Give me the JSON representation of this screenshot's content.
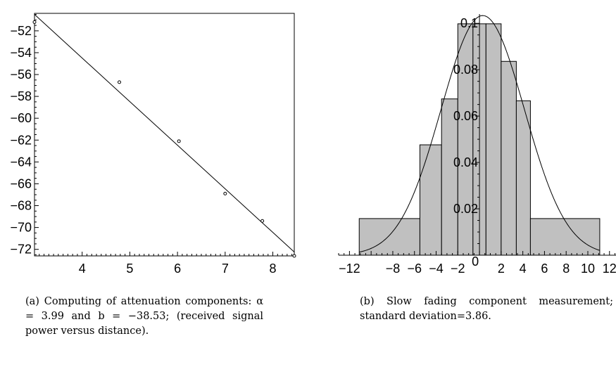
{
  "chart_data": [
    {
      "type": "scatter",
      "title": "",
      "xlabel": "",
      "ylabel": "",
      "xlim": [
        3.0,
        8.45
      ],
      "ylim": [
        -72.6,
        -50.4
      ],
      "x_ticks": [
        4,
        5,
        6,
        7,
        8
      ],
      "y_ticks": [
        -52,
        -54,
        -56,
        -58,
        -60,
        -62,
        -64,
        -66,
        -68,
        -70,
        -72
      ],
      "x_tick_labels": [
        "4",
        "5",
        "6",
        "7",
        "8"
      ],
      "y_tick_labels": [
        "−52",
        "−54",
        "−56",
        "−58",
        "−60",
        "−62",
        "−64",
        "−66",
        "−68",
        "−70",
        "−72"
      ],
      "points": [
        {
          "x": 3.0,
          "y": -51.2
        },
        {
          "x": 4.78,
          "y": -56.7
        },
        {
          "x": 6.03,
          "y": -62.1
        },
        {
          "x": 7.0,
          "y": -66.9
        },
        {
          "x": 7.78,
          "y": -69.4
        },
        {
          "x": 8.45,
          "y": -72.6
        }
      ],
      "fit_line": {
        "slope": -3.99,
        "intercept": -38.53
      },
      "grid": false,
      "caption": "(a) Computing of attenuation components: α = 3.99 and b = −38.53; (received signal power versus distance)."
    },
    {
      "type": "bar",
      "title": "",
      "xlabel": "",
      "ylabel": "",
      "xlim": [
        -13.0,
        12.6
      ],
      "ylim": [
        0,
        0.104
      ],
      "x_ticks": [
        -12,
        -8,
        -6,
        -4,
        -2,
        0,
        2,
        4,
        6,
        8,
        10,
        12
      ],
      "y_ticks": [
        0.02,
        0.04,
        0.06,
        0.08,
        0.1
      ],
      "x_tick_labels": [
        "−12",
        "−8",
        "−6",
        "−4",
        "−2",
        "0",
        "2",
        "4",
        "6",
        "8",
        "10",
        "12"
      ],
      "y_tick_labels": [
        "0.02",
        "0.04",
        "0.06",
        "0.08",
        "0.1"
      ],
      "bins": [
        {
          "left": -11.1,
          "right": -5.5,
          "value": 0.0158
        },
        {
          "left": -5.5,
          "right": -3.5,
          "value": 0.0476
        },
        {
          "left": -3.5,
          "right": -2.0,
          "value": 0.0674
        },
        {
          "left": -2.0,
          "right": -0.6,
          "value": 0.0998
        },
        {
          "left": -0.6,
          "right": 0.6,
          "value": 0.0998
        },
        {
          "left": 0.6,
          "right": 2.0,
          "value": 0.0998
        },
        {
          "left": 2.0,
          "right": 3.4,
          "value": 0.0836
        },
        {
          "left": 3.4,
          "right": 4.7,
          "value": 0.0666
        },
        {
          "left": 4.7,
          "right": 11.1,
          "value": 0.0158
        }
      ],
      "curve": {
        "type": "normal",
        "mean": 0.3,
        "std": 3.86
      },
      "grid": false,
      "caption": "(b) Slow fading component measurement; standard deviation=3.86."
    }
  ]
}
